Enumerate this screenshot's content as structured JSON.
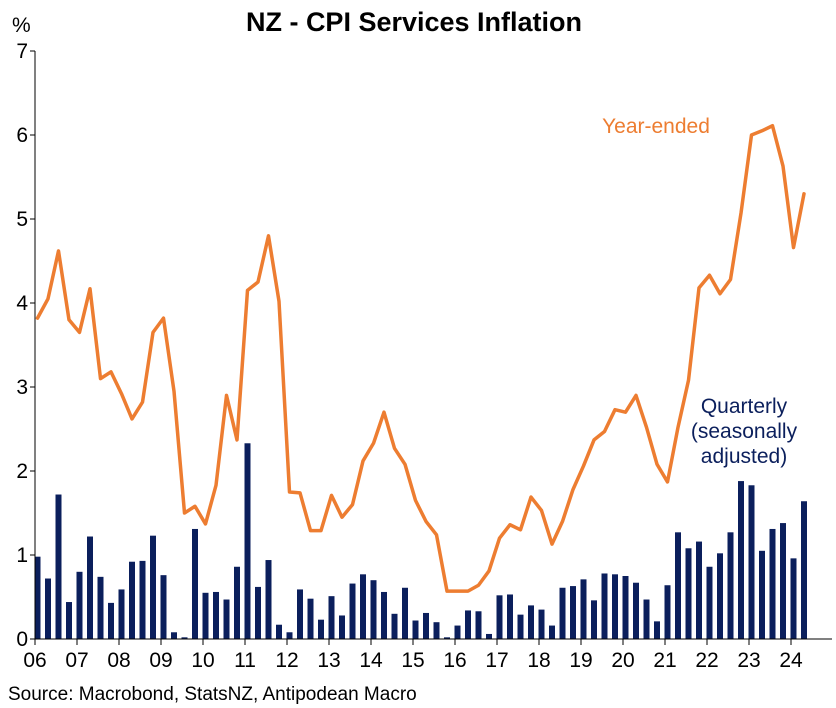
{
  "chart_data": {
    "type": "bar+line",
    "title": "NZ - CPI Services Inflation",
    "ylabel": "%",
    "ylim": [
      0,
      7
    ],
    "yticks": [
      "0",
      "1",
      "2",
      "3",
      "4",
      "5",
      "6",
      "7"
    ],
    "xticks": [
      "06",
      "07",
      "08",
      "09",
      "10",
      "11",
      "12",
      "13",
      "14",
      "15",
      "16",
      "17",
      "18",
      "19",
      "20",
      "21",
      "22",
      "23",
      "24"
    ],
    "grid": false,
    "source": "Source: Macrobond, StatsNZ, Antipodean Macro",
    "colors": {
      "line": "#ED7D31",
      "bar": "#0B1F5C"
    },
    "series": [
      {
        "name": "Year-ended",
        "type": "line",
        "values": [
          3.82,
          4.05,
          4.62,
          3.8,
          3.65,
          4.17,
          3.1,
          3.18,
          2.92,
          2.62,
          2.82,
          3.65,
          3.82,
          2.95,
          1.5,
          1.58,
          1.37,
          1.83,
          2.9,
          2.37,
          4.15,
          4.25,
          4.8,
          4.02,
          1.75,
          1.74,
          1.29,
          1.29,
          1.71,
          1.45,
          1.6,
          2.12,
          2.33,
          2.7,
          2.27,
          2.08,
          1.65,
          1.4,
          1.24,
          0.57,
          0.57,
          0.57,
          0.64,
          0.81,
          1.2,
          1.36,
          1.3,
          1.69,
          1.53,
          1.13,
          1.4,
          1.78,
          2.06,
          2.37,
          2.47,
          2.73,
          2.7,
          2.9,
          2.52,
          2.08,
          1.87,
          2.52,
          3.08,
          4.18,
          4.33,
          4.11,
          4.28,
          5.07,
          6.0,
          6.05,
          6.11,
          5.63,
          4.66,
          5.3
        ]
      },
      {
        "name": "Quarterly (seasonally adjusted)",
        "type": "bar",
        "values": [
          0.98,
          0.72,
          1.72,
          0.44,
          0.8,
          1.22,
          0.74,
          0.43,
          0.59,
          0.92,
          0.93,
          1.23,
          0.76,
          0.08,
          0.02,
          1.31,
          0.55,
          0.56,
          0.47,
          0.86,
          2.33,
          0.62,
          0.94,
          0.17,
          0.08,
          0.59,
          0.48,
          0.23,
          0.51,
          0.28,
          0.66,
          0.77,
          0.7,
          0.56,
          0.3,
          0.61,
          0.22,
          0.31,
          0.2,
          0.02,
          0.16,
          0.34,
          0.33,
          0.06,
          0.52,
          0.53,
          0.29,
          0.4,
          0.35,
          0.16,
          0.61,
          0.63,
          0.71,
          0.46,
          0.78,
          0.77,
          0.75,
          0.67,
          0.47,
          0.21,
          0.64,
          1.27,
          1.08,
          1.16,
          0.86,
          1.02,
          1.27,
          1.88,
          1.83,
          1.05,
          1.31,
          1.38,
          0.96,
          1.64
        ]
      }
    ],
    "annotations": {
      "line_label": "Year-ended",
      "bar_label_lines": [
        "Quarterly",
        "(seasonally",
        "adjusted)"
      ]
    }
  }
}
